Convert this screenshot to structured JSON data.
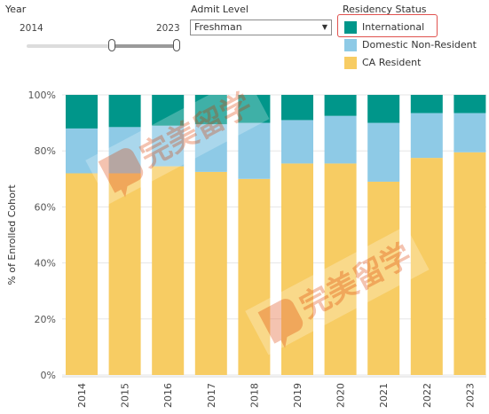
{
  "controls": {
    "year_label": "Year",
    "year_start": "2014",
    "year_end": "2023",
    "admit_label": "Admit Level",
    "admit_value": "Freshman",
    "admit_arrow": "▼",
    "legend_title": "Residency Status",
    "legend": [
      {
        "name": "International",
        "color": "#00968a"
      },
      {
        "name": "Domestic Non-Resident",
        "color": "#8ecae6"
      },
      {
        "name": "CA Resident",
        "color": "#f7cc63"
      }
    ]
  },
  "watermark": "完美留学",
  "chart_data": {
    "type": "bar",
    "stacked": true,
    "categories": [
      "2014",
      "2015",
      "2016",
      "2017",
      "2018",
      "2019",
      "2020",
      "2021",
      "2022",
      "2023"
    ],
    "series": [
      {
        "name": "CA Resident",
        "color": "#f7cc63",
        "values": [
          72,
          72,
          74.5,
          72.5,
          70,
          75.5,
          75.5,
          69,
          77.5,
          79.5
        ]
      },
      {
        "name": "Domestic Non-Resident",
        "color": "#8ecae6",
        "values": [
          16,
          16.5,
          14.5,
          17,
          20,
          15.5,
          17,
          21,
          16,
          14
        ]
      },
      {
        "name": "International",
        "color": "#00968a",
        "values": [
          12,
          11.5,
          11,
          10.5,
          10,
          9,
          7.5,
          10,
          6.5,
          6.5
        ]
      }
    ],
    "ylabel": "% of Enrolled Cohort",
    "yticks": [
      "0%",
      "20%",
      "40%",
      "60%",
      "80%",
      "100%"
    ],
    "ylim": [
      0,
      100
    ],
    "grid": true
  }
}
